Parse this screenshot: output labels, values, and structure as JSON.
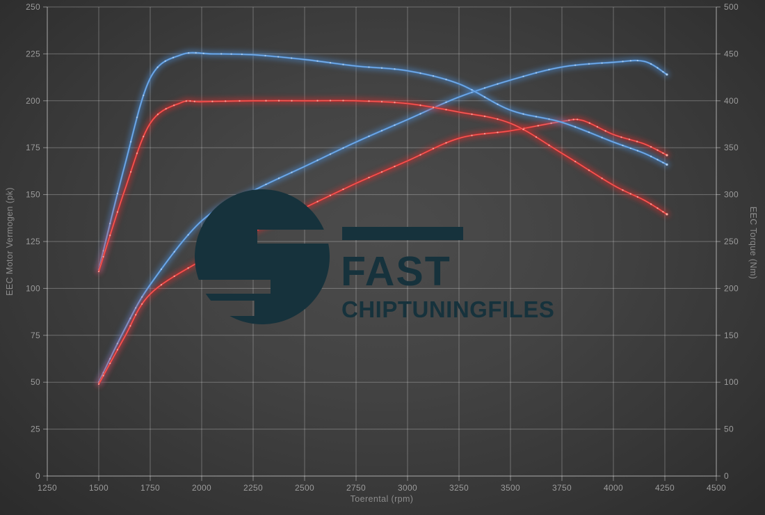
{
  "watermark": {
    "brand_line1": "FAST",
    "brand_line2": "CHIPTUNINGFILES",
    "logo_color": "#16323c"
  },
  "chart_data": {
    "type": "line",
    "title": "",
    "xlabel": "Toerental (rpm)",
    "ylabel_left": "EEC Motor Vermogen (pk)",
    "ylabel_right": "EEC Torque (Nm)",
    "x_range": [
      1250,
      4500
    ],
    "y_left_range": [
      0,
      250
    ],
    "y_right_range": [
      0,
      500
    ],
    "x_ticks": [
      1250,
      1500,
      1750,
      2000,
      2250,
      2500,
      2750,
      3000,
      3250,
      3500,
      3750,
      4000,
      4250,
      4500
    ],
    "y_left_ticks": [
      0,
      25,
      50,
      75,
      100,
      125,
      150,
      175,
      200,
      225,
      250
    ],
    "y_right_ticks": [
      0,
      50,
      100,
      150,
      200,
      250,
      300,
      350,
      400,
      450,
      500
    ],
    "grid": true,
    "legend": "none",
    "colors": {
      "blue": "#4e90d9",
      "red": "#e02d2d"
    },
    "series": [
      {
        "name": "vermogen-blue",
        "unit": "pk",
        "axis": "left",
        "color": "blue",
        "points": [
          [
            1500,
            50
          ],
          [
            1625,
            78
          ],
          [
            1750,
            102
          ],
          [
            2000,
            136
          ],
          [
            2250,
            152
          ],
          [
            2500,
            165
          ],
          [
            2750,
            178
          ],
          [
            3000,
            190
          ],
          [
            3250,
            202
          ],
          [
            3500,
            211
          ],
          [
            3750,
            218
          ],
          [
            4000,
            220.5
          ],
          [
            4150,
            221
          ],
          [
            4260,
            214
          ]
        ]
      },
      {
        "name": "vermogen-red",
        "unit": "pk",
        "axis": "left",
        "color": "red",
        "points": [
          [
            1500,
            49
          ],
          [
            1625,
            74
          ],
          [
            1750,
            97
          ],
          [
            2000,
            115
          ],
          [
            2250,
            130
          ],
          [
            2500,
            143
          ],
          [
            2750,
            156
          ],
          [
            3000,
            168
          ],
          [
            3250,
            180
          ],
          [
            3500,
            184
          ],
          [
            3750,
            189
          ],
          [
            3850,
            189.5
          ],
          [
            4000,
            182
          ],
          [
            4150,
            177
          ],
          [
            4260,
            171
          ]
        ]
      },
      {
        "name": "torque-blue",
        "unit": "Nm",
        "axis": "right",
        "color": "blue",
        "points": [
          [
            1500,
            220
          ],
          [
            1625,
            330
          ],
          [
            1750,
            424
          ],
          [
            1900,
            449
          ],
          [
            2050,
            450
          ],
          [
            2250,
            449
          ],
          [
            2500,
            444
          ],
          [
            2750,
            437
          ],
          [
            3000,
            432
          ],
          [
            3250,
            418
          ],
          [
            3500,
            390
          ],
          [
            3750,
            377
          ],
          [
            4000,
            356
          ],
          [
            4150,
            344
          ],
          [
            4260,
            332
          ]
        ]
      },
      {
        "name": "torque-red",
        "unit": "Nm",
        "axis": "right",
        "color": "red",
        "points": [
          [
            1500,
            218
          ],
          [
            1625,
            304
          ],
          [
            1750,
            376
          ],
          [
            1900,
            398
          ],
          [
            2000,
            399
          ],
          [
            2250,
            400
          ],
          [
            2500,
            400
          ],
          [
            2750,
            400
          ],
          [
            3000,
            397
          ],
          [
            3250,
            388
          ],
          [
            3500,
            376
          ],
          [
            3750,
            344
          ],
          [
            4000,
            310
          ],
          [
            4150,
            294
          ],
          [
            4260,
            279
          ]
        ]
      }
    ]
  }
}
